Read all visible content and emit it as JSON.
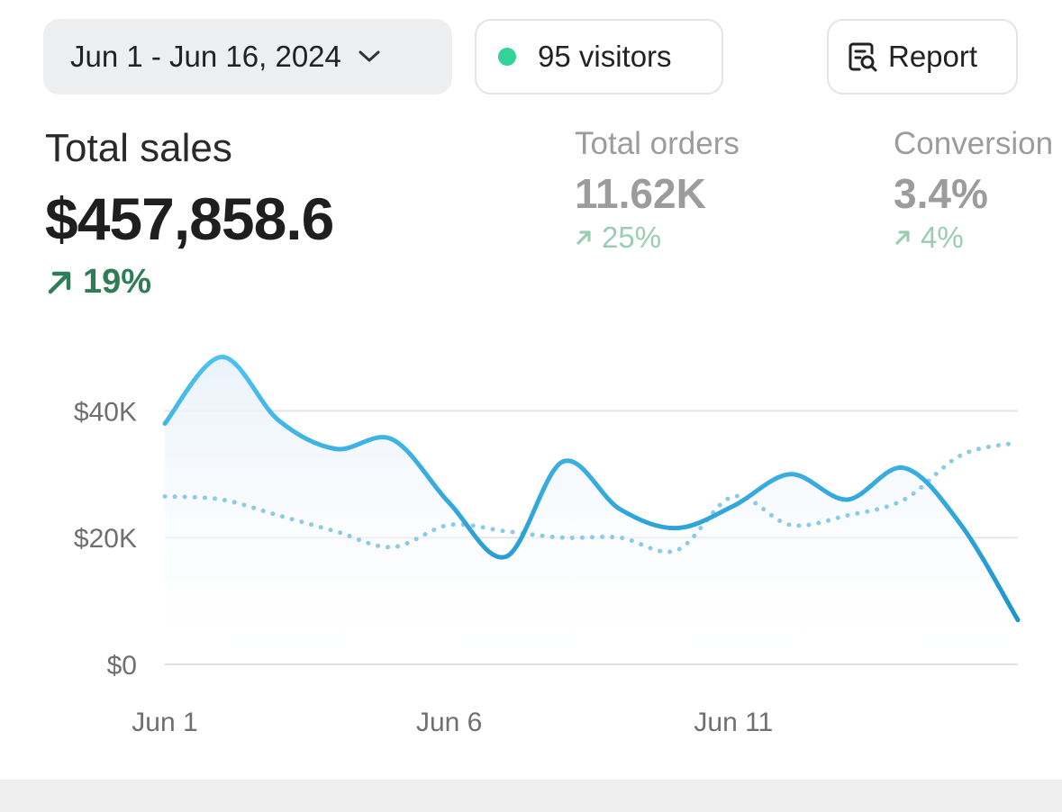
{
  "toolbar": {
    "date_range": "Jun 1 - Jun 16, 2024",
    "visitors": "95 visitors",
    "report_label": "Report",
    "visitor_dot_color": "#34d399"
  },
  "metrics": {
    "total_sales": {
      "label": "Total sales",
      "value": "$457,858.6",
      "delta": "19%"
    },
    "total_orders": {
      "label": "Total orders",
      "value": "11.62K",
      "delta": "25%"
    },
    "conversion": {
      "label": "Conversion",
      "value": "3.4%",
      "delta": "4%"
    }
  },
  "colors": {
    "primary_line": "#2b9fd8",
    "comparison_line": "#8ccbe6",
    "positive": "#2e7d57"
  },
  "chart_data": {
    "type": "line",
    "x": [
      "Jun 1",
      "Jun 2",
      "Jun 3",
      "Jun 4",
      "Jun 5",
      "Jun 6",
      "Jun 7",
      "Jun 8",
      "Jun 9",
      "Jun 10",
      "Jun 11",
      "Jun 12",
      "Jun 13",
      "Jun 14",
      "Jun 15",
      "Jun 16"
    ],
    "series": [
      {
        "values": [
          38000,
          48500,
          38500,
          34000,
          35500,
          25500,
          17000,
          32000,
          24500,
          21500,
          25000,
          30000,
          26000,
          31000,
          22000,
          7000
        ],
        "style": "solid"
      },
      {
        "values": [
          26500,
          26000,
          23500,
          21000,
          18500,
          22000,
          21000,
          20000,
          20000,
          18000,
          26500,
          22000,
          23500,
          26000,
          33000,
          35000
        ],
        "style": "dotted"
      }
    ],
    "xticks": [
      "Jun 1",
      "Jun 6",
      "Jun 11"
    ],
    "yticks": [
      "$0",
      "$20K",
      "$40K"
    ],
    "ylim": [
      0,
      50000
    ],
    "grid": true
  }
}
